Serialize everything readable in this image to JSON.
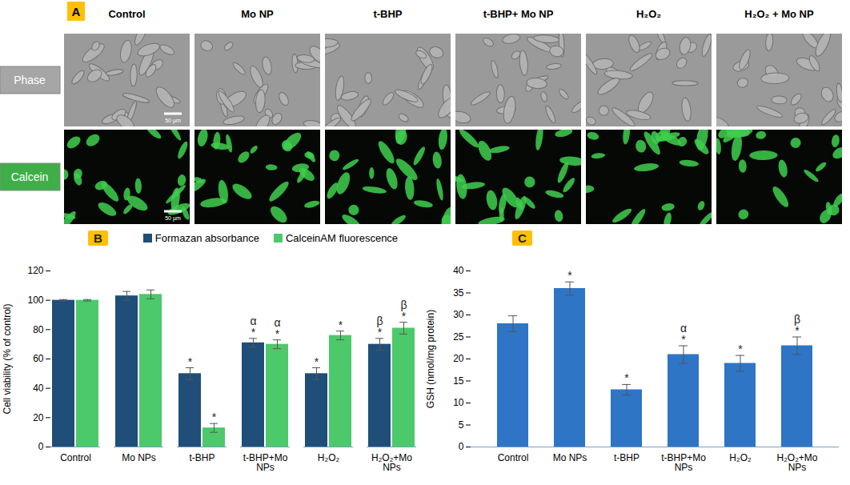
{
  "panel_a": {
    "label": "A",
    "columns": [
      "Control",
      "Mo NP",
      "t-BHP",
      "t-BHP+ Mo NP",
      "H₂O₂",
      "H₂O₂ + Mo NP"
    ],
    "rows": [
      {
        "label": "Phase",
        "color": "#a6a6a6"
      },
      {
        "label": "Calcein",
        "color": "#3fae49"
      }
    ],
    "scale_bar": "50 µm"
  },
  "chart_data": [
    {
      "type": "bar",
      "panel": "B",
      "categories": [
        "Control",
        "Mo NPs",
        "t-BHP",
        "t-BHP+Mo NPs",
        "H₂O₂",
        "H₂O₂+Mo NPs"
      ],
      "series": [
        {
          "name": "Formazan absorbance",
          "color": "#1f4e79",
          "values": [
            100,
            103,
            50,
            71,
            50,
            70
          ],
          "errors": [
            0.5,
            3,
            4,
            3,
            4,
            4
          ],
          "annotations": [
            [],
            [],
            [
              "*"
            ],
            [
              "*",
              "α"
            ],
            [
              "*"
            ],
            [
              "*",
              "β"
            ]
          ]
        },
        {
          "name": "CalceinAM fluorescence",
          "color": "#4cc96a",
          "values": [
            100,
            104,
            13,
            70,
            76,
            81
          ],
          "errors": [
            0.5,
            3,
            3,
            3,
            3,
            4
          ],
          "annotations": [
            [],
            [],
            [
              "*"
            ],
            [
              "*",
              "α"
            ],
            [
              "*"
            ],
            [
              "*",
              "β"
            ]
          ]
        }
      ],
      "ylabel": "Cell viability (% of control)",
      "ylim": [
        0,
        120
      ],
      "yticks": [
        0,
        20,
        40,
        60,
        80,
        100,
        120
      ],
      "legend": "top",
      "grid": false
    },
    {
      "type": "bar",
      "panel": "C",
      "categories": [
        "Control",
        "Mo NPs",
        "t-BHP",
        "t-BHP+Mo NPs",
        "H₂O₂",
        "H₂O₂+Mo NPs"
      ],
      "values": [
        28,
        36,
        13,
        21,
        19,
        23
      ],
      "errors": [
        1.8,
        1.5,
        1.2,
        2,
        1.8,
        2
      ],
      "annotations": [
        [],
        [
          "*"
        ],
        [
          "*"
        ],
        [
          "*",
          "α"
        ],
        [
          "*"
        ],
        [
          "*",
          "β"
        ]
      ],
      "color": "#2e75c5",
      "ylabel": "GSH (nmol/mg protein)",
      "ylim": [
        0,
        40
      ],
      "yticks": [
        0,
        5,
        10,
        15,
        20,
        25,
        30,
        35,
        40
      ],
      "grid": false
    }
  ]
}
